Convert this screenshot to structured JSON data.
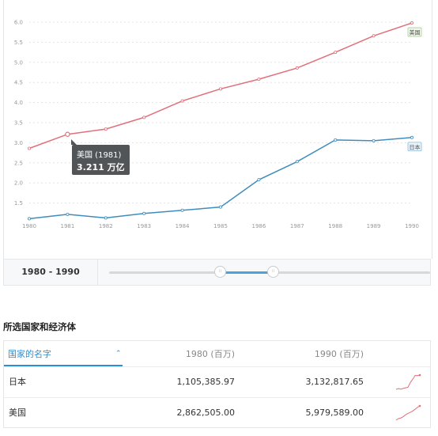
{
  "chart_data": {
    "type": "line",
    "x": [
      1980,
      1981,
      1982,
      1983,
      1984,
      1985,
      1986,
      1987,
      1988,
      1989,
      1990
    ],
    "ylim": [
      1.0,
      6.0
    ],
    "yticks": [
      "1.5",
      "2.0",
      "2.5",
      "3.0",
      "3.5",
      "4.0",
      "4.5",
      "5.0",
      "5.5",
      "6.0"
    ],
    "grid": true,
    "series": [
      {
        "name": "美国",
        "color": "#e0707a",
        "values": [
          2.86,
          3.21,
          3.34,
          3.63,
          4.04,
          4.34,
          4.58,
          4.86,
          5.25,
          5.66,
          5.98
        ]
      },
      {
        "name": "日本",
        "color": "#3f8dbd",
        "values": [
          1.11,
          1.22,
          1.13,
          1.24,
          1.32,
          1.4,
          2.08,
          2.53,
          3.07,
          3.05,
          3.13
        ]
      }
    ],
    "tooltip": {
      "series": "美国 (1981)",
      "value": "3.211 万亿"
    }
  },
  "range": {
    "label": "1980 - 1990",
    "start_handle": "⁞⁞",
    "end_handle": "⁞⁞"
  },
  "table": {
    "title": "所选国家和经济体",
    "headers": {
      "name": "国家的名字",
      "col1": "1980 (百万)",
      "col2": "1990 (百万)"
    },
    "sort_icon": "chevron-up-icon",
    "rows": [
      {
        "name": "日本",
        "v1980": "1,105,385.97",
        "v1990": "3,132,817.65",
        "spark_color": "#e0707a"
      },
      {
        "name": "美国",
        "v1980": "2,862,505.00",
        "v1990": "5,979,589.00",
        "spark_color": "#e0707a"
      }
    ]
  }
}
